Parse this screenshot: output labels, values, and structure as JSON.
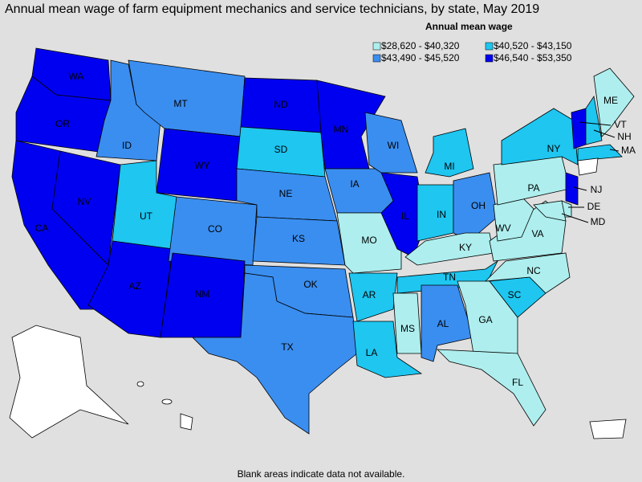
{
  "title": "Annual mean wage of farm equipment mechanics and service technicians, by state, May 2019",
  "legend": {
    "title": "Annual mean wage",
    "items": [
      {
        "label": "$28,620 - $40,320",
        "color": "#aeeeee"
      },
      {
        "label": "$40,520 - $43,150",
        "color": "#1ec6f0"
      },
      {
        "label": "$43,490 - $45,520",
        "color": "#3a8ef0"
      },
      {
        "label": "$46,540 - $53,350",
        "color": "#0000f0"
      }
    ]
  },
  "states": [
    {
      "label": "WA",
      "color": "#0000f0"
    },
    {
      "label": "OR",
      "color": "#0000f0"
    },
    {
      "label": "CA",
      "color": "#0000f0"
    },
    {
      "label": "NV",
      "color": "#0000f0"
    },
    {
      "label": "ID",
      "color": "#3a8ef0"
    },
    {
      "label": "MT",
      "color": "#3a8ef0"
    },
    {
      "label": "WY",
      "color": "#0000f0"
    },
    {
      "label": "UT",
      "color": "#1ec6f0"
    },
    {
      "label": "AZ",
      "color": "#0000f0"
    },
    {
      "label": "CO",
      "color": "#3a8ef0"
    },
    {
      "label": "NM",
      "color": "#0000f0"
    },
    {
      "label": "ND",
      "color": "#0000f0"
    },
    {
      "label": "SD",
      "color": "#1ec6f0"
    },
    {
      "label": "NE",
      "color": "#3a8ef0"
    },
    {
      "label": "KS",
      "color": "#3a8ef0"
    },
    {
      "label": "OK",
      "color": "#3a8ef0"
    },
    {
      "label": "TX",
      "color": "#3a8ef0"
    },
    {
      "label": "MN",
      "color": "#0000f0"
    },
    {
      "label": "IA",
      "color": "#3a8ef0"
    },
    {
      "label": "MO",
      "color": "#aeeeee"
    },
    {
      "label": "WI",
      "color": "#3a8ef0"
    },
    {
      "label": "IL",
      "color": "#0000f0"
    },
    {
      "label": "MI",
      "color": "#1ec6f0"
    },
    {
      "label": "IN",
      "color": "#1ec6f0"
    },
    {
      "label": "OH",
      "color": "#3a8ef0"
    },
    {
      "label": "KY",
      "color": "#aeeeee"
    },
    {
      "label": "TN",
      "color": "#1ec6f0"
    },
    {
      "label": "AR",
      "color": "#1ec6f0"
    },
    {
      "label": "LA",
      "color": "#1ec6f0"
    },
    {
      "label": "MS",
      "color": "#aeeeee"
    },
    {
      "label": "AL",
      "color": "#3a8ef0"
    },
    {
      "label": "GA",
      "color": "#aeeeee"
    },
    {
      "label": "FL",
      "color": "#aeeeee"
    },
    {
      "label": "SC",
      "color": "#1ec6f0"
    },
    {
      "label": "NC",
      "color": "#aeeeee"
    },
    {
      "label": "VA",
      "color": "#aeeeee"
    },
    {
      "label": "WV",
      "color": "#aeeeee"
    },
    {
      "label": "PA",
      "color": "#aeeeee"
    },
    {
      "label": "NY",
      "color": "#1ec6f0"
    },
    {
      "label": "VT",
      "color": "#0000f0"
    },
    {
      "label": "NH",
      "color": "#1ec6f0"
    },
    {
      "label": "ME",
      "color": "#aeeeee"
    },
    {
      "label": "MA",
      "color": "#1ec6f0"
    },
    {
      "label": "NJ",
      "color": "#0000f0"
    },
    {
      "label": "DE",
      "color": "#aeeeee"
    },
    {
      "label": "MD",
      "color": "#aeeeee"
    }
  ],
  "footnote": "Blank areas indicate data not available."
}
